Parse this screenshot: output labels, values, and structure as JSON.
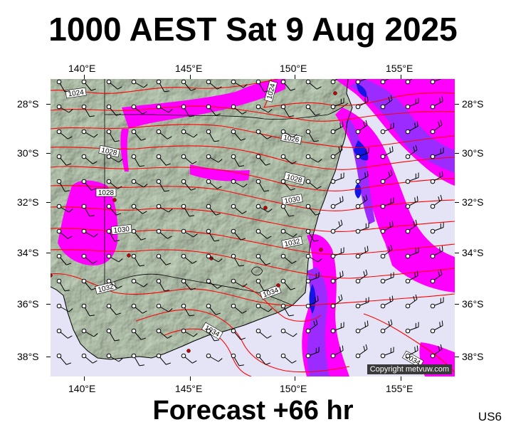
{
  "title": "1000 AEST Sat 9 Aug 2025",
  "footer": "Forecast +66 hr",
  "region_code": "US6",
  "copyright": "Copyright metvuw.com",
  "axes": {
    "longitude_labels": [
      "140°E",
      "145°E",
      "150°E",
      "155°E"
    ],
    "latitude_labels": [
      "28°S",
      "30°S",
      "32°S",
      "34°S",
      "36°S",
      "38°S"
    ]
  },
  "isobar_labels": [
    "1024",
    "1024",
    "1026",
    "1028",
    "1028",
    "1028",
    "1030",
    "1030",
    "1032",
    "1032",
    "1034",
    "1034",
    "1034"
  ],
  "colors": {
    "land": "#c7d8c1",
    "sea": "#e4e4f6",
    "rain_light": "#ff00ff",
    "rain_medium": "#9b2bff",
    "rain_heavy": "#1414e6",
    "isobar": "#ff0000"
  }
}
